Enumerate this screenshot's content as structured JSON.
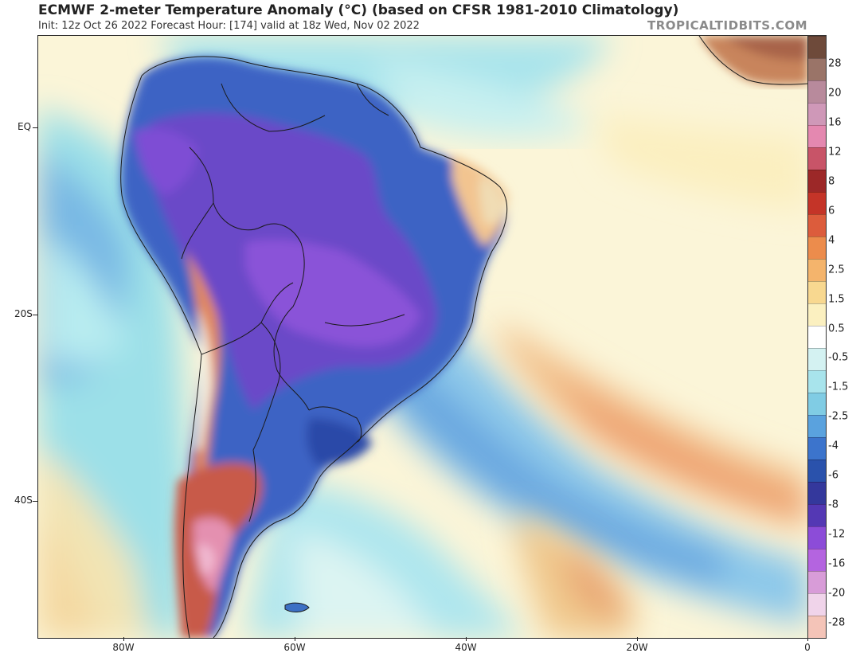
{
  "header": {
    "title": "ECMWF 2-meter Temperature Anomaly (°C) (based on CFSR 1981-2010 Climatology)",
    "subtitle": "Init: 12z Oct 26 2022   Forecast Hour: [174]   valid at 18z Wed, Nov 02 2022",
    "brand": "TROPICALTIDBITS.COM"
  },
  "map": {
    "region": "South America",
    "lat_labels": [
      {
        "label": "EQ"
      },
      {
        "label": "20S"
      },
      {
        "label": "40S"
      }
    ],
    "lon_labels": [
      {
        "label": "80W"
      },
      {
        "label": "60W"
      },
      {
        "label": "40W"
      },
      {
        "label": "20W"
      },
      {
        "label": "0"
      }
    ]
  },
  "legend": {
    "labels": [
      "28",
      "20",
      "16",
      "12",
      "8",
      "6",
      "4",
      "2.5",
      "1.5",
      "0.5",
      "-0.5",
      "-1.5",
      "-2.5",
      "-4",
      "-6",
      "-8",
      "-12",
      "-16",
      "-20",
      "-28"
    ],
    "colors": [
      "#6e4a3a",
      "#9a7468",
      "#b88a9c",
      "#cf98b8",
      "#e488b0",
      "#c85468",
      "#9c2828",
      "#c43428",
      "#dc5c3c",
      "#ec8c4c",
      "#f4b46c",
      "#f8d890",
      "#fbf0c0",
      "#ffffff",
      "#d4f2f2",
      "#a8e4ec",
      "#80cce4",
      "#5aa2de",
      "#3c74cc",
      "#2a52ac",
      "#34389c",
      "#5438b4",
      "#8c4cd8",
      "#b464e0",
      "#d89cd8",
      "#f0d4ea",
      "#f4c4b8"
    ]
  }
}
